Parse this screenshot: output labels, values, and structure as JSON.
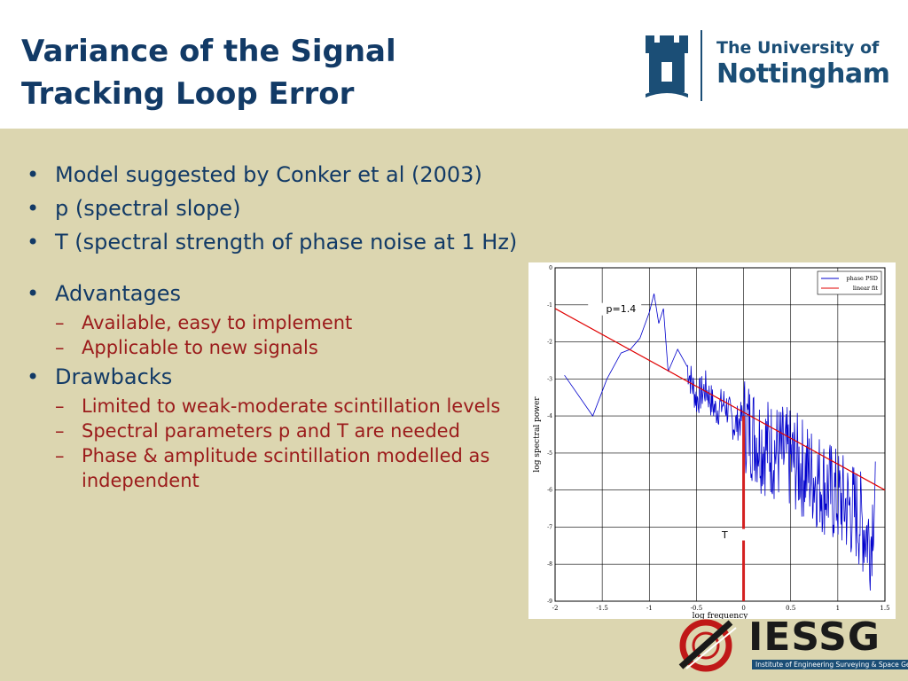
{
  "slide": {
    "title_line1": "Variance of the Signal",
    "title_line2": "Tracking Loop Error"
  },
  "logo": {
    "line1": "The University of",
    "line2": "Nottingham",
    "colors": {
      "brand": "#1b4e76"
    }
  },
  "bullets": [
    {
      "text": "Model suggested by Conker et al (2003)"
    },
    {
      "text": "p (spectral slope)"
    },
    {
      "text": "T (spectral strength of phase noise at 1 Hz)"
    }
  ],
  "advantages": {
    "label": "Advantages",
    "items": [
      "Available, easy to implement",
      "Applicable to new signals"
    ]
  },
  "drawbacks": {
    "label": "Drawbacks",
    "items": [
      "Limited to weak-moderate scintillation levels",
      "Spectral parameters p and T are needed",
      "Phase & amplitude scintillation modelled as independent"
    ]
  },
  "chart_data": {
    "type": "line",
    "xlabel": "log frequency",
    "ylabel": "log spectral power",
    "xlim": [
      -2,
      1.5
    ],
    "ylim": [
      -9,
      0
    ],
    "x_ticks": [
      "-2",
      "-1.5",
      "-1",
      "-0.5",
      "0",
      "0.5",
      "1",
      "1.5"
    ],
    "y_ticks": [
      "0",
      "-1",
      "-2",
      "-3",
      "-4",
      "-5",
      "-6",
      "-7",
      "-8",
      "-9"
    ],
    "grid": true,
    "legend": {
      "position": "top-right",
      "entries": [
        "phase PSD",
        "linear fit"
      ]
    },
    "annotations": {
      "slope": "p=1.4",
      "strength": "T"
    },
    "series": [
      {
        "name": "phase PSD",
        "color": "#0000cc",
        "x": [
          -1.9,
          -1.6,
          -1.45,
          -1.3,
          -1.2,
          -1.1,
          -1.0,
          -0.95,
          -0.9,
          -0.85,
          -0.8,
          -0.7,
          -0.6,
          -0.5,
          -0.4,
          -0.3,
          -0.2,
          -0.1,
          0.0,
          0.2,
          0.4,
          0.6,
          0.8,
          1.0,
          1.2,
          1.35,
          1.4
        ],
        "y": [
          -2.9,
          -4.0,
          -3.0,
          -2.3,
          -2.2,
          -1.9,
          -1.2,
          -0.7,
          -1.5,
          -1.1,
          -2.8,
          -2.2,
          -2.6,
          -3.5,
          -3.2,
          -3.8,
          -3.6,
          -4.2,
          -4.0,
          -4.6,
          -4.9,
          -5.2,
          -5.6,
          -6.1,
          -6.5,
          -7.2,
          -5.5
        ]
      },
      {
        "name": "linear fit",
        "color": "#e00000",
        "x": [
          -2,
          1.5
        ],
        "y": [
          -1.1,
          -6.0
        ]
      }
    ],
    "t_marker": {
      "x": 0,
      "y": -4.0,
      "color": "#d42020"
    }
  }
}
